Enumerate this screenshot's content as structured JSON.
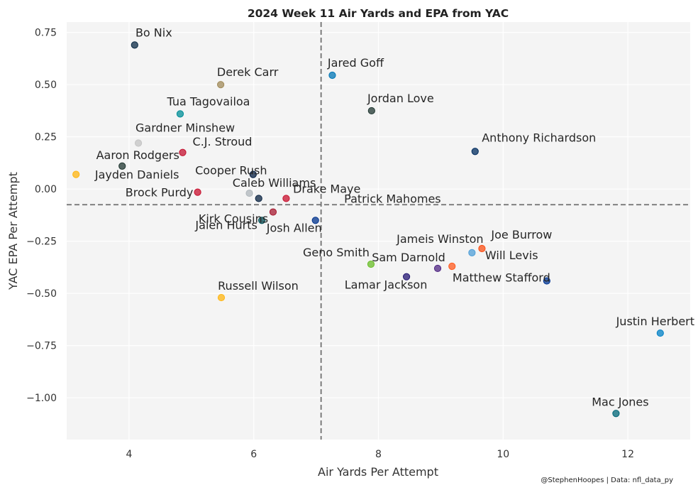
{
  "chart_data": {
    "type": "scatter",
    "title": "2024 Week 11 Air Yards and EPA from YAC",
    "xlabel": "Air Yards Per Attempt",
    "ylabel": "YAC EPA Per Attempt",
    "xlim": [
      3.0,
      13.0
    ],
    "ylim": [
      -1.2,
      0.8
    ],
    "xticks": [
      4,
      6,
      8,
      10,
      12
    ],
    "xtick_labels": [
      "4",
      "6",
      "8",
      "10",
      "12"
    ],
    "yticks": [
      0.75,
      0.5,
      0.25,
      0.0,
      -0.25,
      -0.5,
      -0.75,
      -1.0
    ],
    "ytick_labels": [
      "0.75",
      "0.50",
      "0.25",
      "0.00",
      "−0.25",
      "−0.50",
      "−0.75",
      "−1.00"
    ],
    "grid": true,
    "ref_lines": {
      "x": 7.08,
      "y": -0.075
    },
    "points": [
      {
        "name": "Bo Nix",
        "x": 4.09,
        "y": 0.69,
        "color": "#0B2A45"
      },
      {
        "name": "Jared Goff",
        "x": 7.26,
        "y": 0.545,
        "color": "#0076B6"
      },
      {
        "name": "Derek Carr",
        "x": 5.47,
        "y": 0.5,
        "color": "#A08A58"
      },
      {
        "name": "Jordan Love",
        "x": 7.89,
        "y": 0.375,
        "color": "#203731"
      },
      {
        "name": "Tua Tagovailoa",
        "x": 4.82,
        "y": 0.36,
        "color": "#008E97"
      },
      {
        "name": "Gardner Minshew",
        "x": 4.15,
        "y": 0.22,
        "color": "#C4C4C4"
      },
      {
        "name": "C.J. Stroud",
        "x": 4.86,
        "y": 0.175,
        "color": "#C41230"
      },
      {
        "name": "Anthony Richardson",
        "x": 9.55,
        "y": 0.18,
        "color": "#002C5F"
      },
      {
        "name": "Aaron Rodgers",
        "x": 3.89,
        "y": 0.11,
        "color": "#203731"
      },
      {
        "name": "Jayden Daniels",
        "x": 3.15,
        "y": 0.07,
        "color": "#FFB612"
      },
      {
        "name": "Cooper Rush",
        "x": 5.99,
        "y": 0.07,
        "color": "#041E42"
      },
      {
        "name": "Drake Maye",
        "x": 6.08,
        "y": -0.045,
        "color": "#0A2342"
      },
      {
        "name": "Brock Purdy",
        "x": 5.1,
        "y": -0.015,
        "color": "#C8102E"
      },
      {
        "name": "Caleb Williams",
        "x": 5.93,
        "y": -0.02,
        "color": "#B0B7BC"
      },
      {
        "name": "Patrick Mahomes",
        "x": 6.52,
        "y": -0.045,
        "color": "#C8102E"
      },
      {
        "name": "Kirk Cousins",
        "x": 6.31,
        "y": -0.11,
        "color": "#A71930"
      },
      {
        "name": "Jalen Hurts",
        "x": 6.13,
        "y": -0.15,
        "color": "#004C54"
      },
      {
        "name": "Josh Allen",
        "x": 6.99,
        "y": -0.15,
        "color": "#00338D"
      },
      {
        "name": "Jameis Winston",
        "x": 9.5,
        "y": -0.305,
        "color": "#4F9FD8"
      },
      {
        "name": "Joe Burrow",
        "x": 9.66,
        "y": -0.285,
        "color": "#FB4F14"
      },
      {
        "name": "Will Levis",
        "x": 9.18,
        "y": -0.37,
        "color": "#FF5A1F"
      },
      {
        "name": "Sam Darnold",
        "x": 8.95,
        "y": -0.38,
        "color": "#4F2683"
      },
      {
        "name": "Geno Smith",
        "x": 7.88,
        "y": -0.36,
        "color": "#69BE28"
      },
      {
        "name": "Lamar Jackson",
        "x": 8.45,
        "y": -0.42,
        "color": "#241773"
      },
      {
        "name": "Matthew Stafford",
        "x": 10.7,
        "y": -0.44,
        "color": "#003594"
      },
      {
        "name": "Russell Wilson",
        "x": 5.48,
        "y": -0.52,
        "color": "#FFB612"
      },
      {
        "name": "Justin Herbert",
        "x": 12.52,
        "y": -0.69,
        "color": "#0080C6"
      },
      {
        "name": "Mac Jones",
        "x": 11.81,
        "y": -1.075,
        "color": "#006778"
      }
    ],
    "credit": "@StephenHoopes | Data: nfl_data_py"
  }
}
